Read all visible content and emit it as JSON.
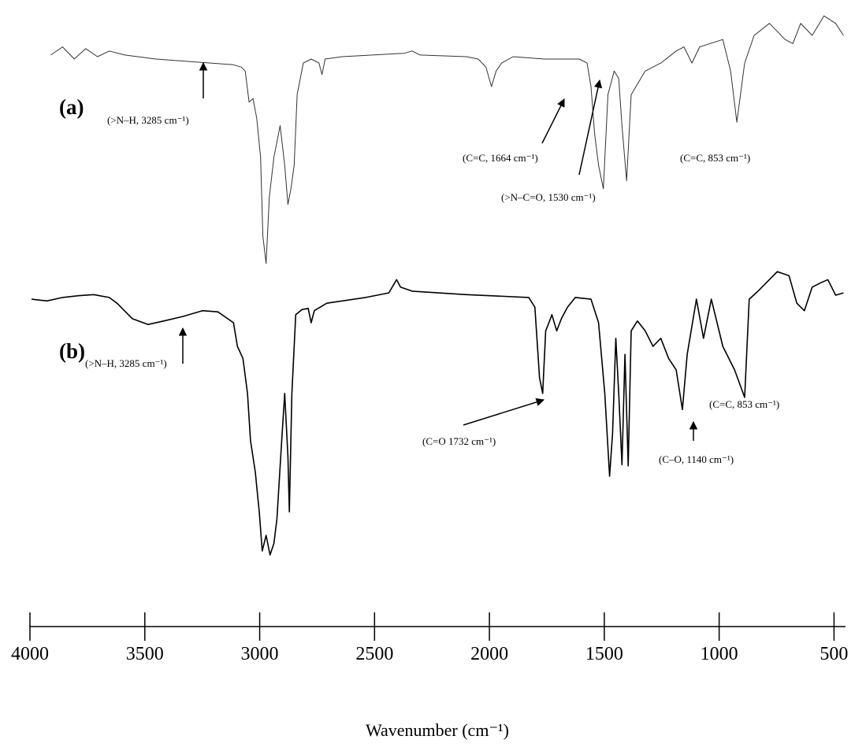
{
  "chart_data": {
    "type": "line",
    "x_label": "Wavenumber (cm⁻¹)",
    "xlim": [
      4000,
      450
    ],
    "xticks": [
      4000,
      3500,
      3000,
      2500,
      2000,
      1500,
      1000,
      500
    ],
    "ylim": [
      0,
      100
    ],
    "panel_labels": [
      "(a)",
      "(b)"
    ],
    "series": [
      {
        "name": "(a)",
        "color": "#333333",
        "x": [
          3909,
          3858,
          3807,
          3757,
          3706,
          3655,
          3587,
          3452,
          3114,
          3080,
          3063,
          3046,
          3029,
          3013,
          2996,
          2986,
          2972,
          2958,
          2938,
          2911,
          2891,
          2877,
          2864,
          2850,
          2837,
          2810,
          2776,
          2742,
          2729,
          2715,
          2641,
          2370,
          2336,
          2302,
          2100,
          2049,
          2015,
          1991,
          1971,
          1947,
          1897,
          1761,
          1609,
          1575,
          1558,
          1542,
          1525,
          1504,
          1484,
          1457,
          1437,
          1423,
          1403,
          1383,
          1322,
          1254,
          1187,
          1153,
          1119,
          1085,
          984,
          950,
          923,
          889,
          848,
          781,
          713,
          679,
          645,
          595,
          544,
          493,
          459
        ],
        "values": [
          91.8,
          93.2,
          91.1,
          92.9,
          91.5,
          92.5,
          91.8,
          91.1,
          90.1,
          89.7,
          89.0,
          83.6,
          84.2,
          80.8,
          74.0,
          60.3,
          55.5,
          67.1,
          74.0,
          79.5,
          72.6,
          65.8,
          68.5,
          72.6,
          84.9,
          90.4,
          91.1,
          90.4,
          88.4,
          91.1,
          91.5,
          92.1,
          92.5,
          91.8,
          91.5,
          91.1,
          89.7,
          86.3,
          89.0,
          90.4,
          91.5,
          91.1,
          91.1,
          90.4,
          86.3,
          78.1,
          72.6,
          68.5,
          84.9,
          89.0,
          87.7,
          79.5,
          69.9,
          84.9,
          89.0,
          90.4,
          92.5,
          93.2,
          90.4,
          93.2,
          94.5,
          89.0,
          80.1,
          90.4,
          95.2,
          97.3,
          94.5,
          93.8,
          97.3,
          95.2,
          98.6,
          97.3,
          95.2
        ]
      },
      {
        "name": "(b)",
        "color": "#000000",
        "x": [
          3993,
          3926,
          3858,
          3790,
          3723,
          3655,
          3621,
          3554,
          3486,
          3418,
          3334,
          3249,
          3182,
          3114,
          3097,
          3073,
          3053,
          3040,
          3019,
          3002,
          2989,
          2972,
          2955,
          2938,
          2925,
          2904,
          2891,
          2877,
          2871,
          2860,
          2843,
          2816,
          2789,
          2776,
          2762,
          2708,
          2539,
          2438,
          2404,
          2387,
          2336,
          2100,
          1829,
          1802,
          1782,
          1768,
          1755,
          1741,
          1728,
          1707,
          1687,
          1660,
          1626,
          1558,
          1525,
          1498,
          1477,
          1464,
          1450,
          1437,
          1423,
          1410,
          1396,
          1383,
          1356,
          1322,
          1288,
          1254,
          1220,
          1187,
          1160,
          1139,
          1099,
          1068,
          1034,
          984,
          933,
          889,
          869,
          831,
          747,
          696,
          662,
          629,
          595,
          561,
          527,
          493,
          459
        ],
        "values": [
          49.3,
          49.0,
          49.6,
          49.9,
          50.1,
          49.6,
          48.6,
          45.9,
          44.9,
          45.5,
          46.3,
          47.3,
          47.1,
          45.2,
          41.1,
          39.0,
          32.9,
          24.7,
          19.2,
          12.3,
          5.5,
          8.2,
          4.8,
          6.8,
          11.0,
          24.7,
          32.9,
          21.9,
          12.3,
          32.9,
          46.6,
          47.5,
          47.7,
          45.2,
          47.3,
          48.6,
          49.6,
          50.4,
          52.7,
          51.4,
          50.7,
          50.1,
          49.6,
          47.9,
          35.6,
          32.9,
          43.8,
          45.2,
          46.6,
          43.8,
          45.9,
          47.9,
          49.6,
          49.3,
          45.2,
          32.9,
          18.5,
          26.0,
          42.5,
          32.9,
          20.5,
          39.7,
          20.3,
          43.8,
          45.5,
          43.8,
          41.1,
          42.5,
          39.0,
          37.0,
          30.1,
          39.7,
          49.3,
          42.5,
          49.3,
          41.1,
          37.0,
          32.2,
          49.3,
          50.7,
          54.1,
          53.4,
          48.6,
          47.3,
          51.4,
          52.1,
          52.7,
          50.0,
          50.4
        ]
      }
    ],
    "annotations": [
      {
        "text": "(>N–H, 3285 cm⁻¹)"
      },
      {
        "text": "(C=C, 1664 cm⁻¹)"
      },
      {
        "text": "(>N–C=O, 1530 cm⁻¹)"
      },
      {
        "text": "(C=C, 853 cm⁻¹)"
      },
      {
        "text": "(>N–H, 3285 cm⁻¹)"
      },
      {
        "text": "(C=O 1732 cm⁻¹)"
      },
      {
        "text": "(C–O, 1140 cm⁻¹)"
      },
      {
        "text": "(C=C, 853 cm⁻¹)"
      }
    ]
  }
}
